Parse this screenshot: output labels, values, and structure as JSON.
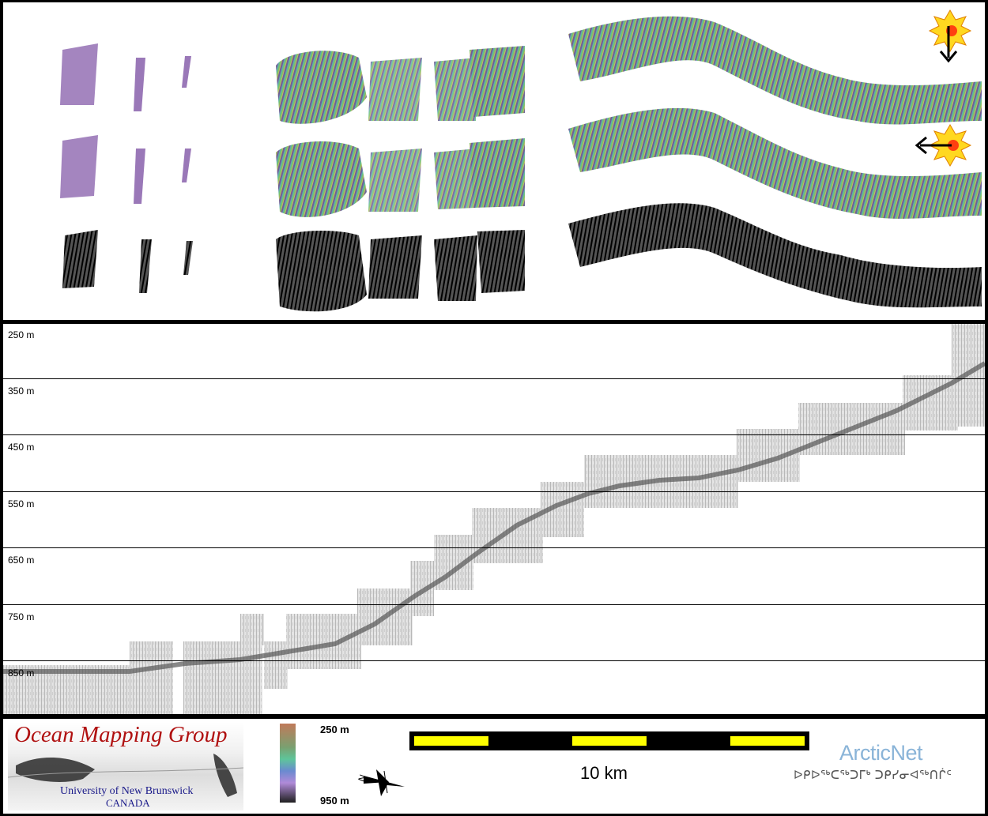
{
  "profile": {
    "depth_labels": [
      "250 m",
      "350 m",
      "450 m",
      "550 m",
      "650 m",
      "750 m",
      "850 m"
    ]
  },
  "legend": {
    "colorbar_top": "250 m",
    "colorbar_bottom": "950 m",
    "scale_label": "10 km",
    "north_label": "N"
  },
  "logos": {
    "omg_title": "Ocean Mapping Group",
    "omg_university": "University of New Brunswick",
    "omg_country": "CANADA",
    "arcticnet": "ArcticNet",
    "arcticnet_syllabics": "ᐅᑭᐅᖅᑕᖅᑐᒥᒃ ᑐᑭᓯᓂᐊᖅᑎᒌᑦ"
  },
  "map": {
    "illumination_icons": [
      "sun-icon",
      "arrow-down-icon",
      "arrow-left-icon"
    ],
    "colors": {
      "shallow": "#d8d080",
      "mid": "#60c890",
      "deep": "#a080c8"
    }
  },
  "colors": {
    "scale_yellow": "#ffff00",
    "scale_black": "#000000",
    "omg_red": "#b01010",
    "arcticnet_blue": "#8ab4d8"
  }
}
